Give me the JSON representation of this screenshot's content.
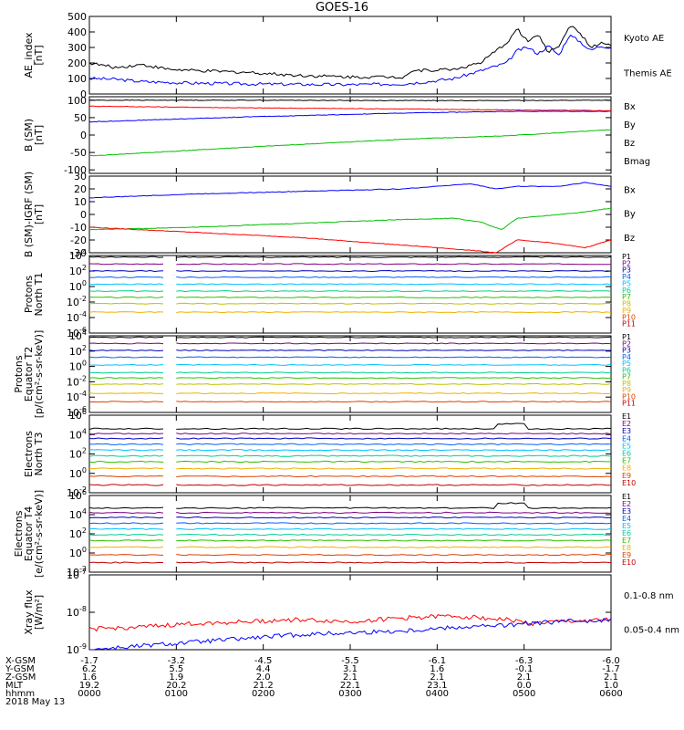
{
  "title": "GOES-16",
  "chart_data": [
    {
      "id": "ae",
      "type": "line",
      "ylabel": [
        "AE_index",
        "[nT]"
      ],
      "ylim": [
        0,
        500
      ],
      "yticks": [
        "0",
        "100",
        "200",
        "300",
        "400",
        "500"
      ],
      "series": [
        {
          "name": "Kyoto AE",
          "color": "#0000ff",
          "points": [
            [
              0,
              100
            ],
            [
              0.05,
              95
            ],
            [
              0.1,
              80
            ],
            [
              0.15,
              75
            ],
            [
              0.2,
              70
            ],
            [
              0.3,
              65
            ],
            [
              0.4,
              62
            ],
            [
              0.5,
              60
            ],
            [
              0.6,
              65
            ],
            [
              0.65,
              80
            ],
            [
              0.7,
              100
            ],
            [
              0.75,
              150
            ],
            [
              0.8,
              200
            ],
            [
              0.82,
              280
            ],
            [
              0.84,
              300
            ],
            [
              0.86,
              260
            ],
            [
              0.88,
              310
            ],
            [
              0.9,
              250
            ],
            [
              0.92,
              380
            ],
            [
              0.94,
              340
            ],
            [
              0.96,
              280
            ],
            [
              0.98,
              310
            ],
            [
              1,
              300
            ]
          ]
        },
        {
          "name": "Themis AE",
          "color": "#000000",
          "points": [
            [
              0,
              200
            ],
            [
              0.05,
              170
            ],
            [
              0.1,
              190
            ],
            [
              0.15,
              160
            ],
            [
              0.2,
              150
            ],
            [
              0.3,
              140
            ],
            [
              0.4,
              120
            ],
            [
              0.5,
              110
            ],
            [
              0.6,
              110
            ],
            [
              0.62,
              150
            ],
            [
              0.7,
              160
            ],
            [
              0.75,
              200
            ],
            [
              0.8,
              330
            ],
            [
              0.82,
              420
            ],
            [
              0.84,
              340
            ],
            [
              0.86,
              380
            ],
            [
              0.88,
              270
            ],
            [
              0.9,
              310
            ],
            [
              0.92,
              440
            ],
            [
              0.94,
              400
            ],
            [
              0.96,
              300
            ],
            [
              0.98,
              330
            ],
            [
              1,
              310
            ]
          ]
        }
      ]
    },
    {
      "id": "bsm",
      "type": "line",
      "ylabel": [
        "B (SM)",
        "[nT]"
      ],
      "ylim": [
        -110,
        110
      ],
      "yticks": [
        "-100",
        "-50",
        "0",
        "50",
        "100"
      ],
      "series": [
        {
          "name": "Bx",
          "color": "#0000ff",
          "points": [
            [
              0,
              38
            ],
            [
              0.3,
              52
            ],
            [
              0.6,
              63
            ],
            [
              0.8,
              68
            ],
            [
              1,
              68
            ]
          ]
        },
        {
          "name": "By",
          "color": "#00c000",
          "points": [
            [
              0,
              -60
            ],
            [
              0.3,
              -35
            ],
            [
              0.6,
              -12
            ],
            [
              0.75,
              -5
            ],
            [
              0.8,
              -2
            ],
            [
              1,
              15
            ]
          ]
        },
        {
          "name": "Bz",
          "color": "#ff0000",
          "points": [
            [
              0,
              83
            ],
            [
              0.3,
              78
            ],
            [
              0.6,
              75
            ],
            [
              0.8,
              72
            ],
            [
              1,
              70
            ]
          ]
        },
        {
          "name": "Bmag",
          "color": "#000000",
          "points": [
            [
              0,
              100
            ],
            [
              0.3,
              100
            ],
            [
              0.6,
              99
            ],
            [
              0.8,
              99
            ],
            [
              1,
              100
            ]
          ]
        }
      ]
    },
    {
      "id": "bsm-igrf",
      "type": "line",
      "ylabel": [
        "B (SM)-IGRF (SM)",
        "[nT]"
      ],
      "ylim": [
        -30,
        30
      ],
      "yticks": [
        "-30",
        "-20",
        "-10",
        "0",
        "10",
        "20",
        "30"
      ],
      "series": [
        {
          "name": "Bx",
          "color": "#0000ff",
          "points": [
            [
              0,
              13
            ],
            [
              0.2,
              16
            ],
            [
              0.4,
              18
            ],
            [
              0.6,
              20
            ],
            [
              0.73,
              24
            ],
            [
              0.78,
              20
            ],
            [
              0.82,
              22
            ],
            [
              0.9,
              22
            ],
            [
              0.95,
              25
            ],
            [
              1,
              22
            ]
          ]
        },
        {
          "name": "By",
          "color": "#00c000",
          "points": [
            [
              0,
              -12
            ],
            [
              0.2,
              -10
            ],
            [
              0.4,
              -7
            ],
            [
              0.6,
              -4
            ],
            [
              0.7,
              -3
            ],
            [
              0.75,
              -6
            ],
            [
              0.79,
              -12
            ],
            [
              0.82,
              -3
            ],
            [
              0.9,
              0
            ],
            [
              0.95,
              2
            ],
            [
              1,
              5
            ]
          ]
        },
        {
          "name": "Bz",
          "color": "#ff0000",
          "points": [
            [
              0,
              -10
            ],
            [
              0.2,
              -14
            ],
            [
              0.4,
              -18
            ],
            [
              0.6,
              -24
            ],
            [
              0.73,
              -28
            ],
            [
              0.78,
              -30
            ],
            [
              0.82,
              -20
            ],
            [
              0.88,
              -22
            ],
            [
              0.95,
              -26
            ],
            [
              1,
              -20
            ]
          ]
        }
      ]
    },
    {
      "id": "protons-t1",
      "type": "line",
      "scale": "log",
      "ylabel": [
        "Protons",
        "North T1"
      ],
      "ylim": [
        -6,
        4
      ],
      "yticks": [
        "10^4",
        "10^2",
        "10^0",
        "10^-2",
        "10^-4",
        "10^-6"
      ],
      "gap": [
        0.145,
        0.165
      ],
      "channels": [
        {
          "name": "P1",
          "color": "#000000",
          "level": 3.8
        },
        {
          "name": "P2",
          "color": "#800080",
          "level": 2.9
        },
        {
          "name": "P3",
          "color": "#0000c0",
          "level": 2.0
        },
        {
          "name": "P4",
          "color": "#0060ff",
          "level": 1.2
        },
        {
          "name": "P5",
          "color": "#00c0ff",
          "level": 0.3
        },
        {
          "name": "P6",
          "color": "#00d090",
          "level": -0.6
        },
        {
          "name": "P7",
          "color": "#30c000",
          "level": -1.4
        },
        {
          "name": "P8",
          "color": "#c0c000",
          "level": -2.2
        },
        {
          "name": "P9",
          "color": "#f0b000",
          "level": -3.3
        },
        {
          "name": "P10",
          "color": "#e04000",
          "level": null
        },
        {
          "name": "P11",
          "color": "#c00000",
          "level": null
        }
      ]
    },
    {
      "id": "protons-t2",
      "type": "line",
      "scale": "log",
      "ylabel": [
        "Protons",
        "Equator T2",
        "[p/(cm²-s-sr-keV)]"
      ],
      "ylim": [
        -6,
        4
      ],
      "yticks": [
        "10^4",
        "10^2",
        "10^0",
        "10^-2",
        "10^-4",
        "10^-6"
      ],
      "gap": [
        0.145,
        0.165
      ],
      "channels": [
        {
          "name": "P1",
          "color": "#000000",
          "level": 3.8
        },
        {
          "name": "P2",
          "color": "#800080",
          "level": 3.0
        },
        {
          "name": "P3",
          "color": "#0000c0",
          "level": 2.1
        },
        {
          "name": "P4",
          "color": "#0060ff",
          "level": 1.2
        },
        {
          "name": "P5",
          "color": "#00c0ff",
          "level": 0.2
        },
        {
          "name": "P6",
          "color": "#00d090",
          "level": -0.8
        },
        {
          "name": "P7",
          "color": "#30c000",
          "level": -1.5
        },
        {
          "name": "P8",
          "color": "#c0c000",
          "level": -2.3
        },
        {
          "name": "P9",
          "color": "#f0b000",
          "level": -3.5
        },
        {
          "name": "P10",
          "color": "#e04000",
          "level": -4.6
        },
        {
          "name": "P11",
          "color": "#c00000",
          "level": null
        }
      ]
    },
    {
      "id": "electrons-t3",
      "type": "line",
      "scale": "log",
      "ylabel": [
        "Electrons",
        "North T3"
      ],
      "ylim": [
        -2,
        6
      ],
      "yticks": [
        "10^6",
        "10^4",
        "10^2",
        "10^0",
        "10^-2"
      ],
      "gap": [
        0.145,
        0.165
      ],
      "channels": [
        {
          "name": "E1",
          "color": "#000000",
          "level": 4.6
        },
        {
          "name": "E2",
          "color": "#800080",
          "level": 4.1
        },
        {
          "name": "E3",
          "color": "#0000c0",
          "level": 3.6
        },
        {
          "name": "E4",
          "color": "#0060ff",
          "level": 3.0
        },
        {
          "name": "E5",
          "color": "#00c0ff",
          "level": 2.4
        },
        {
          "name": "E6",
          "color": "#00d090",
          "level": 1.8
        },
        {
          "name": "E7",
          "color": "#30c000",
          "level": 1.2
        },
        {
          "name": "E8",
          "color": "#f0b000",
          "level": 0.5
        },
        {
          "name": "E9",
          "color": "#e04000",
          "level": -0.3
        },
        {
          "name": "E10",
          "color": "#c00000",
          "level": -1.2
        }
      ]
    },
    {
      "id": "electrons-t4",
      "type": "line",
      "scale": "log",
      "ylabel": [
        "Electrons",
        "Equator T4",
        "[e/(cm²-s-sr-keV)]"
      ],
      "ylim": [
        -2,
        6
      ],
      "yticks": [
        "10^6",
        "10^4",
        "10^2",
        "10^0",
        "10^-2"
      ],
      "gap": [
        0.145,
        0.165
      ],
      "channels": [
        {
          "name": "E1",
          "color": "#000000",
          "level": 4.7
        },
        {
          "name": "E2",
          "color": "#800080",
          "level": 4.2
        },
        {
          "name": "E3",
          "color": "#0000c0",
          "level": 3.7
        },
        {
          "name": "E4",
          "color": "#0060ff",
          "level": 3.1
        },
        {
          "name": "E5",
          "color": "#00c0ff",
          "level": 2.5
        },
        {
          "name": "E6",
          "color": "#00d090",
          "level": 1.9
        },
        {
          "name": "E7",
          "color": "#30c000",
          "level": 1.3
        },
        {
          "name": "E8",
          "color": "#f0b000",
          "level": 0.6
        },
        {
          "name": "E9",
          "color": "#e04000",
          "level": -0.2
        },
        {
          "name": "E10",
          "color": "#c00000",
          "level": -1.0
        }
      ]
    },
    {
      "id": "xray",
      "type": "line",
      "scale": "log",
      "ylabel": [
        "Xray flux",
        "[W/m²]"
      ],
      "ylim": [
        -9,
        -7
      ],
      "yticks": [
        "10^-7",
        "10^-8",
        "10^-9"
      ],
      "series": [
        {
          "name": "0.1-0.8 nm",
          "color": "#ff0000",
          "points": [
            [
              0,
              -8.45
            ],
            [
              0.1,
              -8.4
            ],
            [
              0.2,
              -8.3
            ],
            [
              0.3,
              -8.25
            ],
            [
              0.4,
              -8.2
            ],
            [
              0.5,
              -8.25
            ],
            [
              0.6,
              -8.15
            ],
            [
              0.7,
              -8.1
            ],
            [
              0.8,
              -8.2
            ],
            [
              0.85,
              -8.3
            ],
            [
              0.9,
              -8.25
            ],
            [
              1,
              -8.2
            ]
          ]
        },
        {
          "name": "0.05-0.4 nm",
          "color": "#0000ff",
          "points": [
            [
              0,
              -9.0
            ],
            [
              0.05,
              -8.95
            ],
            [
              0.1,
              -8.9
            ],
            [
              0.2,
              -8.8
            ],
            [
              0.3,
              -8.7
            ],
            [
              0.4,
              -8.6
            ],
            [
              0.5,
              -8.55
            ],
            [
              0.6,
              -8.5
            ],
            [
              0.7,
              -8.4
            ],
            [
              0.8,
              -8.35
            ],
            [
              0.85,
              -8.3
            ],
            [
              0.9,
              -8.25
            ],
            [
              1,
              -8.2
            ]
          ]
        }
      ]
    }
  ],
  "x_axis": {
    "row_labels": [
      "X-GSM",
      "Y-GSM",
      "Z-GSM",
      "MLT",
      "hhmm"
    ],
    "date": "2018 May 13",
    "ticks": [
      {
        "x": 0,
        "values": [
          "-1.7",
          "6.2",
          "1.6",
          "19.2",
          "0000"
        ]
      },
      {
        "x": 1,
        "values": [
          "-3.2",
          "5.5",
          "1.9",
          "20.2",
          "0100"
        ]
      },
      {
        "x": 2,
        "values": [
          "-4.5",
          "4.4",
          "2.0",
          "21.2",
          "0200"
        ]
      },
      {
        "x": 3,
        "values": [
          "-5.5",
          "3.1",
          "2.1",
          "22.1",
          "0300"
        ]
      },
      {
        "x": 4,
        "values": [
          "-6.1",
          "1.6",
          "2.1",
          "23.1",
          "0400"
        ]
      },
      {
        "x": 5,
        "values": [
          "-6.3",
          "-0.1",
          "2.1",
          "0.0",
          "0500"
        ]
      },
      {
        "x": 6,
        "values": [
          "-6.0",
          "-1.7",
          "2.1",
          "1.0",
          "0600"
        ]
      }
    ]
  }
}
